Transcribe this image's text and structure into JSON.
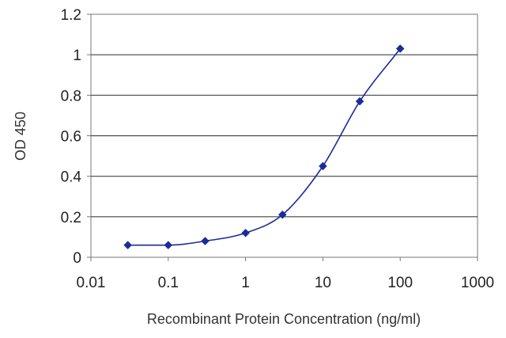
{
  "chart_data": {
    "type": "line",
    "title": "",
    "xlabel": "Recombinant Protein Concentration (ng/ml)",
    "ylabel": "OD 450",
    "x_scale": "log",
    "xlim": [
      0.01,
      1000
    ],
    "ylim": [
      0,
      1.2
    ],
    "x_ticks": [
      0.01,
      0.1,
      1,
      10,
      100,
      1000
    ],
    "x_tick_labels": [
      "0.01",
      "0.1",
      "1",
      "10",
      "100",
      "1000"
    ],
    "y_ticks": [
      0,
      0.2,
      0.4,
      0.6,
      0.8,
      1,
      1.2
    ],
    "y_tick_labels": [
      "0",
      "0.2",
      "0.4",
      "0.6",
      "0.8",
      "1",
      "1.2"
    ],
    "grid": "horizontal",
    "legend": "none",
    "series": [
      {
        "x": [
          0.03,
          0.1,
          0.3,
          1,
          3,
          10,
          30,
          100
        ],
        "y": [
          0.06,
          0.06,
          0.08,
          0.12,
          0.21,
          0.45,
          0.77,
          1.03
        ],
        "color": "#1a2c9c",
        "marker": "diamond",
        "line": "smooth"
      }
    ],
    "colors": {
      "plot_background": "#ffffff",
      "grid": "#444444",
      "border": "#777777",
      "series": "#1a2c9c",
      "marker": "#1a2c9c"
    }
  }
}
